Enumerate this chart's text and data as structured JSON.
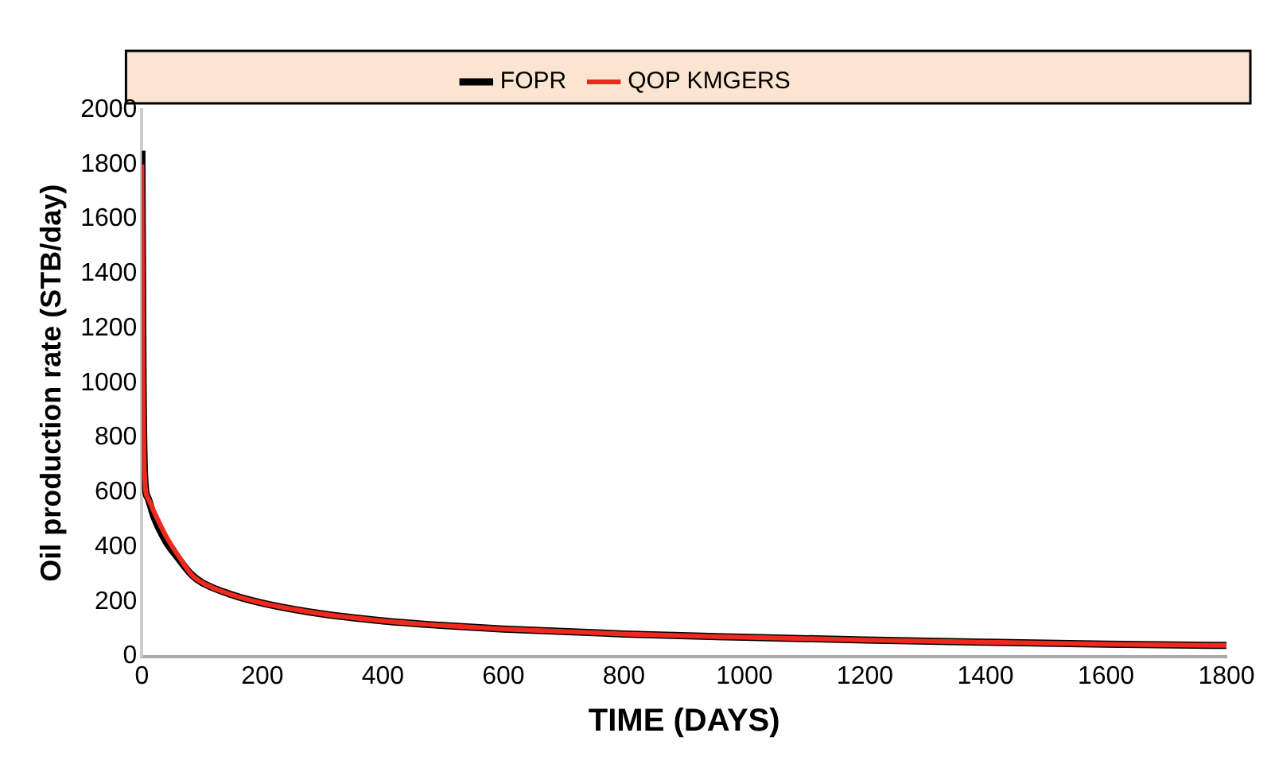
{
  "chart_data": {
    "type": "line",
    "xlabel": "TIME (DAYS)",
    "ylabel": "Oil production rate (STB/day)",
    "xlim": [
      0,
      1800
    ],
    "xticks": [
      0,
      200,
      400,
      600,
      800,
      1000,
      1200,
      1400,
      1600,
      1800
    ],
    "ylim": [
      0,
      2000
    ],
    "yticks": [
      0,
      200,
      400,
      600,
      800,
      1000,
      1200,
      1400,
      1600,
      1800,
      2000
    ],
    "grid": false,
    "legend": "top",
    "marker": "none",
    "line_style": "solid",
    "series": [
      {
        "name": "FOPR",
        "color": "#000000",
        "x": [
          0,
          2,
          5,
          10,
          20,
          40,
          60,
          82,
          100,
          150,
          200,
          300,
          400,
          500,
          600,
          800,
          1000,
          1200,
          1400,
          1600,
          1800
        ],
        "values": [
          1850,
          1000,
          640,
          580,
          510,
          420,
          360,
          300,
          270,
          225,
          195,
          155,
          130,
          113,
          100,
          82,
          70,
          60,
          52,
          45,
          40
        ]
      },
      {
        "name": "QOP KMGERS",
        "color": "#ee2a1e",
        "x": [
          0,
          2,
          5,
          10,
          20,
          40,
          60,
          82,
          100,
          150,
          200,
          300,
          400,
          500,
          600,
          800,
          1000,
          1200,
          1400,
          1600,
          1800
        ],
        "values": [
          1800,
          1000,
          640,
          580,
          530,
          440,
          370,
          300,
          270,
          225,
          195,
          155,
          130,
          113,
          100,
          82,
          70,
          60,
          52,
          45,
          40
        ]
      }
    ]
  }
}
